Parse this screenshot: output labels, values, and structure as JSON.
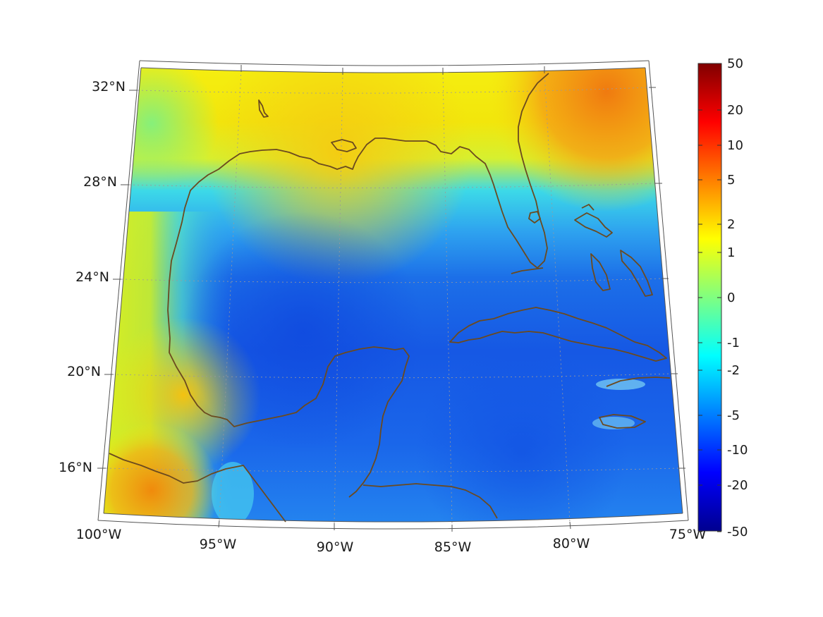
{
  "map": {
    "longitude_labels": [
      "100°W",
      "95°W",
      "90°W",
      "85°W",
      "80°W",
      "75°W"
    ],
    "latitude_labels": [
      "32°N",
      "28°N",
      "24°N",
      "20°N",
      "16°N"
    ],
    "coastline_color": "#6b4a1f",
    "grid_color": "#9a9a9a"
  },
  "colorbar": {
    "labels": [
      "50",
      "20",
      "10",
      "5",
      "2",
      "1",
      "0",
      "-1",
      "-2",
      "-5",
      "-10",
      "-20",
      "-50"
    ],
    "colormap": "jet"
  },
  "field_colors": {
    "deep_blue": "#1356e6",
    "blue": "#1f7cf0",
    "light_blue": "#38a8f0",
    "cyan": "#33d6f0",
    "green": "#7ef08a",
    "yellow": "#f2f20a",
    "gold": "#f5c60f",
    "orange": "#f08a0c"
  }
}
